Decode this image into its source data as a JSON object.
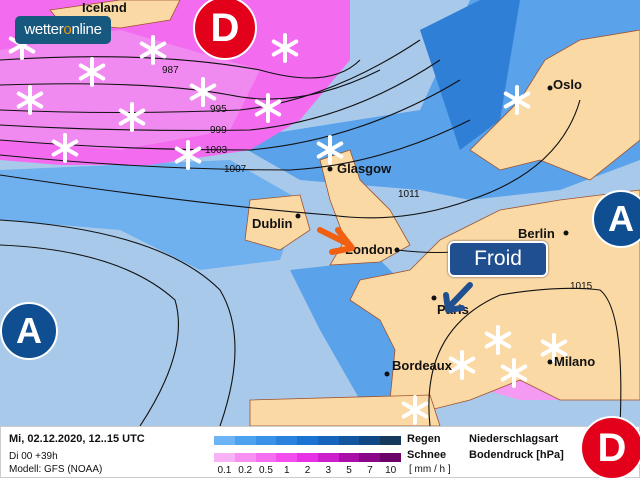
{
  "logo": {
    "text_a": "wetter",
    "text_o": "o",
    "text_b": "nline"
  },
  "pressure_systems": {
    "low": "D",
    "high": "A"
  },
  "places": {
    "iceland": "Iceland",
    "glasgow": "Glasgow",
    "dublin": "Dublin",
    "london": "London",
    "paris": "Paris",
    "oslo": "Oslo",
    "berlin": "Berlin",
    "milano": "Milano",
    "bordeaux": "Bordeaux"
  },
  "isobars": [
    "987",
    "995",
    "999",
    "1003",
    "1007",
    "1011",
    "1015"
  ],
  "callout": {
    "label": "Froid"
  },
  "legend": {
    "date": "Mi, 02.12.2020, 12..15 UTC",
    "run": "Di 00 +39h",
    "model": "Modell: GFS (NOAA)",
    "rain_label": "Regen",
    "snow_label": "Schnee",
    "scale": [
      "0.1",
      "0.2",
      "0.5",
      "1",
      "2",
      "3",
      "5",
      "7",
      "10"
    ],
    "unit": "[ mm / h ]",
    "rain_colors": [
      "#6cb4f5",
      "#4da2ef",
      "#3a92e8",
      "#2a82de",
      "#1a72d2",
      "#1764bc",
      "#13569f",
      "#104886",
      "#163a5e"
    ],
    "snow_colors": [
      "#f9b2f5",
      "#f890f3",
      "#f66ef0",
      "#f44ded",
      "#e830e6",
      "#cc20cc",
      "#aa10a8",
      "#8a0888",
      "#6a0468"
    ],
    "precip_type_label": "Niederschlagsart",
    "pressure_label": "Bodendruck [hPa]"
  },
  "colors": {
    "sea": "#a9c9ea",
    "land": "#fbd9a5",
    "rain": "#5aa2ea",
    "snow": "#f36cf0",
    "low": "#e2001a",
    "high": "#0e4e91"
  }
}
